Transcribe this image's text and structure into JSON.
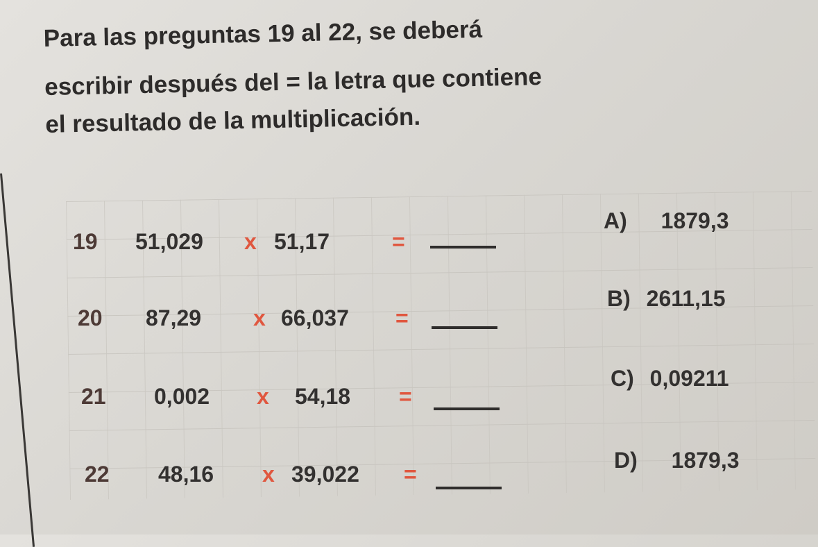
{
  "instructions": [
    "Para las preguntas 19 al 22, se deberá",
    "escribir después del = la letra que contiene",
    "el resultado de la multiplicación."
  ],
  "operator_color": "#e0573f",
  "problems": [
    {
      "number": "19",
      "a": "51,029",
      "op": "x",
      "b": "51,17",
      "eq": "=",
      "answer": ""
    },
    {
      "number": "20",
      "a": "87,29",
      "op": "x",
      "b": "66,037",
      "eq": "=",
      "answer": ""
    },
    {
      "number": "21",
      "a": "0,002",
      "op": "x",
      "b": "54,18",
      "eq": "=",
      "answer": ""
    },
    {
      "number": "22",
      "a": "48,16",
      "op": "x",
      "b": "39,022",
      "eq": "=",
      "answer": ""
    }
  ],
  "options": [
    {
      "letter": "A)",
      "value": "1879,3"
    },
    {
      "letter": "B)",
      "value": "2611,15"
    },
    {
      "letter": "C)",
      "value": "0,09211"
    },
    {
      "letter": "D)",
      "value": "1879,3"
    }
  ]
}
